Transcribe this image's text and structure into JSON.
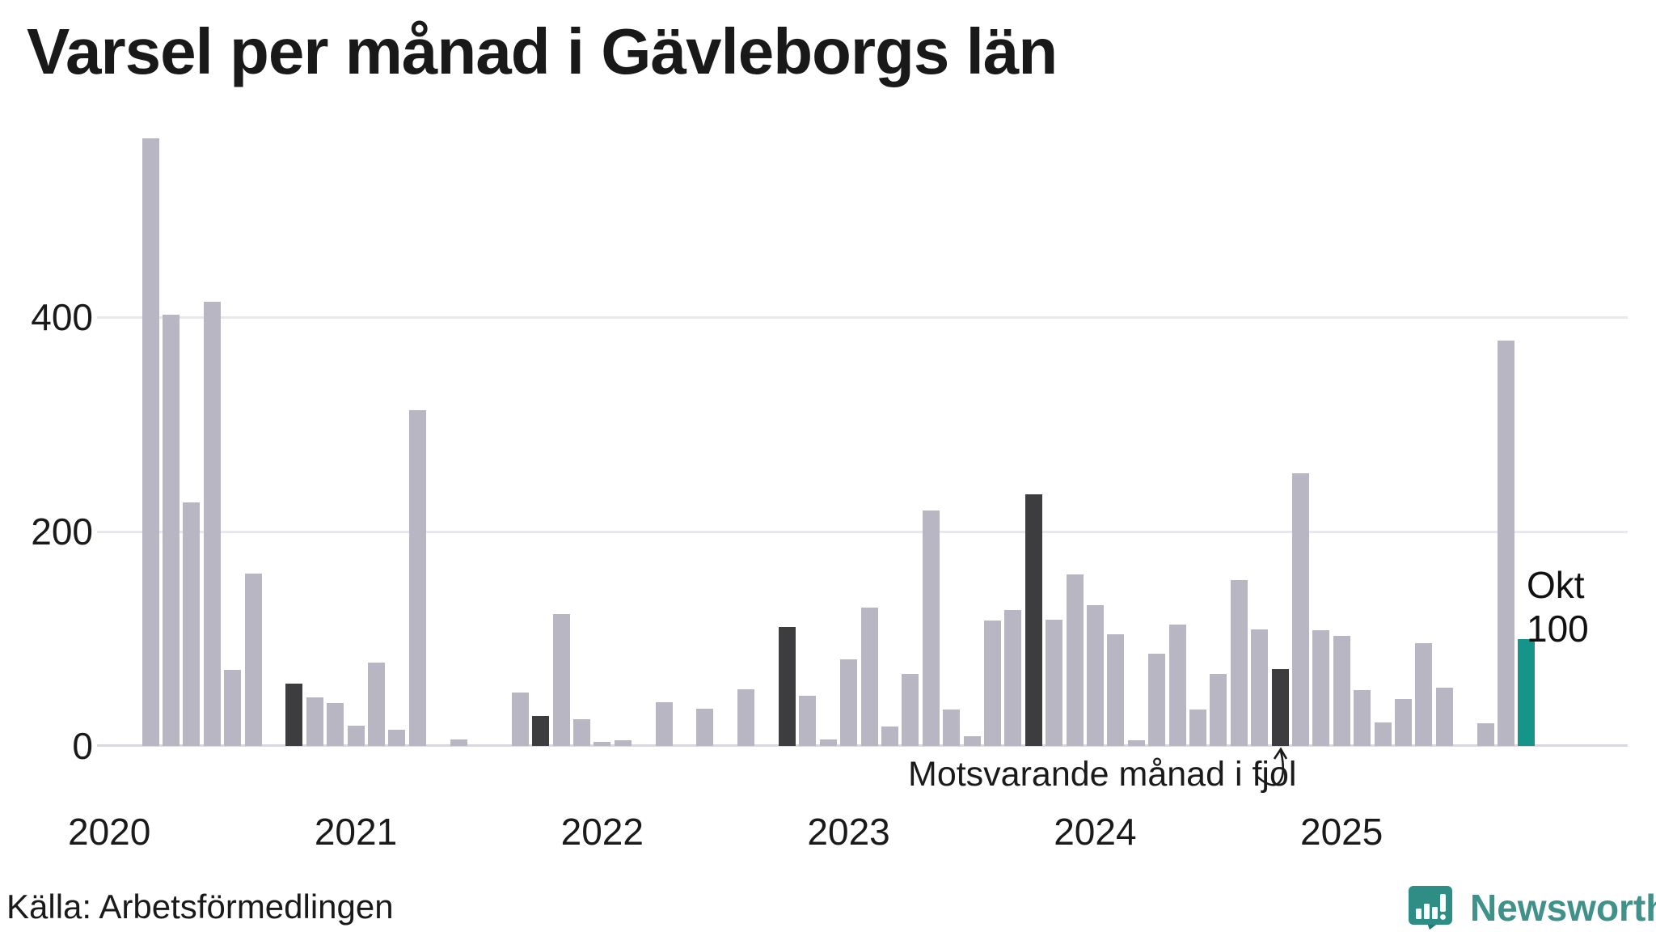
{
  "header": {
    "title": "Varsel per månad i Gävleborgs län"
  },
  "axes": {
    "y_ticks": [
      0,
      200,
      400
    ],
    "years": [
      "2020",
      "2021",
      "2022",
      "2023",
      "2024",
      "2025"
    ]
  },
  "annotation": {
    "text": "Motsvarande månad i fjol",
    "points_to": "2024-10"
  },
  "current_month_label": {
    "line1": "Okt",
    "line2": "100"
  },
  "footer": {
    "source": "Källa: Arbetsförmedlingen",
    "logo_text": "Newsworthy"
  },
  "colors": {
    "bar_normal": "#b9b6c3",
    "bar_same_month_last_year": "#3d3c3e",
    "bar_current": "#17948a",
    "gridline": "#e9e8ee",
    "baseline": "#d9d8e0",
    "text": "#1a1a1a",
    "logo_teal": "#3f918a",
    "logo_icon_teal": "#2e8d85"
  },
  "chart_data": {
    "type": "bar",
    "title": "Varsel per månad i Gävleborgs län",
    "xlabel": "",
    "ylabel": "",
    "ylim": [
      0,
      590
    ],
    "y_ticks": [
      0,
      200,
      400
    ],
    "grid": "horizontal",
    "legend_position": "none",
    "categories_note": "monthly values Mar 2020 - Okt 2025; dark bars = same calendar month (October) in previous years; teal bar = current month",
    "months": [
      {
        "ym": "2020-03",
        "label": "Mar 2020",
        "value": 567,
        "type": "normal"
      },
      {
        "ym": "2020-04",
        "label": "Apr 2020",
        "value": 402,
        "type": "normal"
      },
      {
        "ym": "2020-05",
        "label": "Maj 2020",
        "value": 227,
        "type": "normal"
      },
      {
        "ym": "2020-06",
        "label": "Jun 2020",
        "value": 414,
        "type": "normal"
      },
      {
        "ym": "2020-07",
        "label": "Jul 2020",
        "value": 71,
        "type": "normal"
      },
      {
        "ym": "2020-08",
        "label": "Aug 2020",
        "value": 161,
        "type": "normal"
      },
      {
        "ym": "2020-09",
        "label": "Sep 2020",
        "value": 0,
        "type": "normal"
      },
      {
        "ym": "2020-10",
        "label": "Okt 2020",
        "value": 58,
        "type": "same-month-last-year"
      },
      {
        "ym": "2020-11",
        "label": "Nov 2020",
        "value": 45,
        "type": "normal"
      },
      {
        "ym": "2020-12",
        "label": "Dec 2020",
        "value": 40,
        "type": "normal"
      },
      {
        "ym": "2021-01",
        "label": "Jan 2021",
        "value": 19,
        "type": "normal"
      },
      {
        "ym": "2021-02",
        "label": "Feb 2021",
        "value": 78,
        "type": "normal"
      },
      {
        "ym": "2021-03",
        "label": "Mar 2021",
        "value": 15,
        "type": "normal"
      },
      {
        "ym": "2021-04",
        "label": "Apr 2021",
        "value": 313,
        "type": "normal"
      },
      {
        "ym": "2021-05",
        "label": "Maj 2021",
        "value": 0,
        "type": "normal"
      },
      {
        "ym": "2021-06",
        "label": "Jun 2021",
        "value": 6,
        "type": "normal"
      },
      {
        "ym": "2021-07",
        "label": "Jul 2021",
        "value": 0,
        "type": "normal"
      },
      {
        "ym": "2021-08",
        "label": "Aug 2021",
        "value": 0,
        "type": "normal"
      },
      {
        "ym": "2021-09",
        "label": "Sep 2021",
        "value": 50,
        "type": "normal"
      },
      {
        "ym": "2021-10",
        "label": "Okt 2021",
        "value": 28,
        "type": "same-month-last-year"
      },
      {
        "ym": "2021-11",
        "label": "Nov 2021",
        "value": 123,
        "type": "normal"
      },
      {
        "ym": "2021-12",
        "label": "Dec 2021",
        "value": 25,
        "type": "normal"
      },
      {
        "ym": "2022-01",
        "label": "Jan 2022",
        "value": 4,
        "type": "normal"
      },
      {
        "ym": "2022-02",
        "label": "Feb 2022",
        "value": 5,
        "type": "normal"
      },
      {
        "ym": "2022-03",
        "label": "Mar 2022",
        "value": 0,
        "type": "normal"
      },
      {
        "ym": "2022-04",
        "label": "Apr 2022",
        "value": 41,
        "type": "normal"
      },
      {
        "ym": "2022-05",
        "label": "Maj 2022",
        "value": 0,
        "type": "normal"
      },
      {
        "ym": "2022-06",
        "label": "Jun 2022",
        "value": 35,
        "type": "normal"
      },
      {
        "ym": "2022-07",
        "label": "Jul 2022",
        "value": 0,
        "type": "normal"
      },
      {
        "ym": "2022-08",
        "label": "Aug 2022",
        "value": 53,
        "type": "normal"
      },
      {
        "ym": "2022-09",
        "label": "Sep 2022",
        "value": 0,
        "type": "normal"
      },
      {
        "ym": "2022-10",
        "label": "Okt 2022",
        "value": 111,
        "type": "same-month-last-year"
      },
      {
        "ym": "2022-11",
        "label": "Nov 2022",
        "value": 47,
        "type": "normal"
      },
      {
        "ym": "2022-12",
        "label": "Dec 2022",
        "value": 6,
        "type": "normal"
      },
      {
        "ym": "2023-01",
        "label": "Jan 2023",
        "value": 81,
        "type": "normal"
      },
      {
        "ym": "2023-02",
        "label": "Feb 2023",
        "value": 129,
        "type": "normal"
      },
      {
        "ym": "2023-03",
        "label": "Mar 2023",
        "value": 18,
        "type": "normal"
      },
      {
        "ym": "2023-04",
        "label": "Apr 2023",
        "value": 67,
        "type": "normal"
      },
      {
        "ym": "2023-05",
        "label": "Maj 2023",
        "value": 220,
        "type": "normal"
      },
      {
        "ym": "2023-06",
        "label": "Jun 2023",
        "value": 34,
        "type": "normal"
      },
      {
        "ym": "2023-07",
        "label": "Jul 2023",
        "value": 9,
        "type": "normal"
      },
      {
        "ym": "2023-08",
        "label": "Aug 2023",
        "value": 117,
        "type": "normal"
      },
      {
        "ym": "2023-09",
        "label": "Sep 2023",
        "value": 127,
        "type": "normal"
      },
      {
        "ym": "2023-10",
        "label": "Okt 2023",
        "value": 235,
        "type": "same-month-last-year"
      },
      {
        "ym": "2023-11",
        "label": "Nov 2023",
        "value": 118,
        "type": "normal"
      },
      {
        "ym": "2023-12",
        "label": "Dec 2023",
        "value": 160,
        "type": "normal"
      },
      {
        "ym": "2024-01",
        "label": "Jan 2024",
        "value": 131,
        "type": "normal"
      },
      {
        "ym": "2024-02",
        "label": "Feb 2024",
        "value": 104,
        "type": "normal"
      },
      {
        "ym": "2024-03",
        "label": "Mar 2024",
        "value": 5,
        "type": "normal"
      },
      {
        "ym": "2024-04",
        "label": "Apr 2024",
        "value": 86,
        "type": "normal"
      },
      {
        "ym": "2024-05",
        "label": "Maj 2024",
        "value": 113,
        "type": "normal"
      },
      {
        "ym": "2024-06",
        "label": "Jun 2024",
        "value": 34,
        "type": "normal"
      },
      {
        "ym": "2024-07",
        "label": "Jul 2024",
        "value": 67,
        "type": "normal"
      },
      {
        "ym": "2024-08",
        "label": "Aug 2024",
        "value": 155,
        "type": "normal"
      },
      {
        "ym": "2024-09",
        "label": "Sep 2024",
        "value": 109,
        "type": "normal"
      },
      {
        "ym": "2024-10",
        "label": "Okt 2024",
        "value": 72,
        "type": "same-month-last-year"
      },
      {
        "ym": "2024-11",
        "label": "Nov 2024",
        "value": 254,
        "type": "normal"
      },
      {
        "ym": "2024-12",
        "label": "Dec 2024",
        "value": 108,
        "type": "normal"
      },
      {
        "ym": "2025-01",
        "label": "Jan 2025",
        "value": 103,
        "type": "normal"
      },
      {
        "ym": "2025-02",
        "label": "Feb 2025",
        "value": 52,
        "type": "normal"
      },
      {
        "ym": "2025-03",
        "label": "Mar 2025",
        "value": 22,
        "type": "normal"
      },
      {
        "ym": "2025-04",
        "label": "Apr 2025",
        "value": 44,
        "type": "normal"
      },
      {
        "ym": "2025-05",
        "label": "Maj 2025",
        "value": 96,
        "type": "normal"
      },
      {
        "ym": "2025-06",
        "label": "Jun 2025",
        "value": 54,
        "type": "normal"
      },
      {
        "ym": "2025-07",
        "label": "Jul 2025",
        "value": 0,
        "type": "normal"
      },
      {
        "ym": "2025-08",
        "label": "Aug 2025",
        "value": 21,
        "type": "normal"
      },
      {
        "ym": "2025-09",
        "label": "Sep 2025",
        "value": 378,
        "type": "normal"
      },
      {
        "ym": "2025-10",
        "label": "Okt 2025",
        "value": 100,
        "type": "current-month"
      }
    ]
  }
}
